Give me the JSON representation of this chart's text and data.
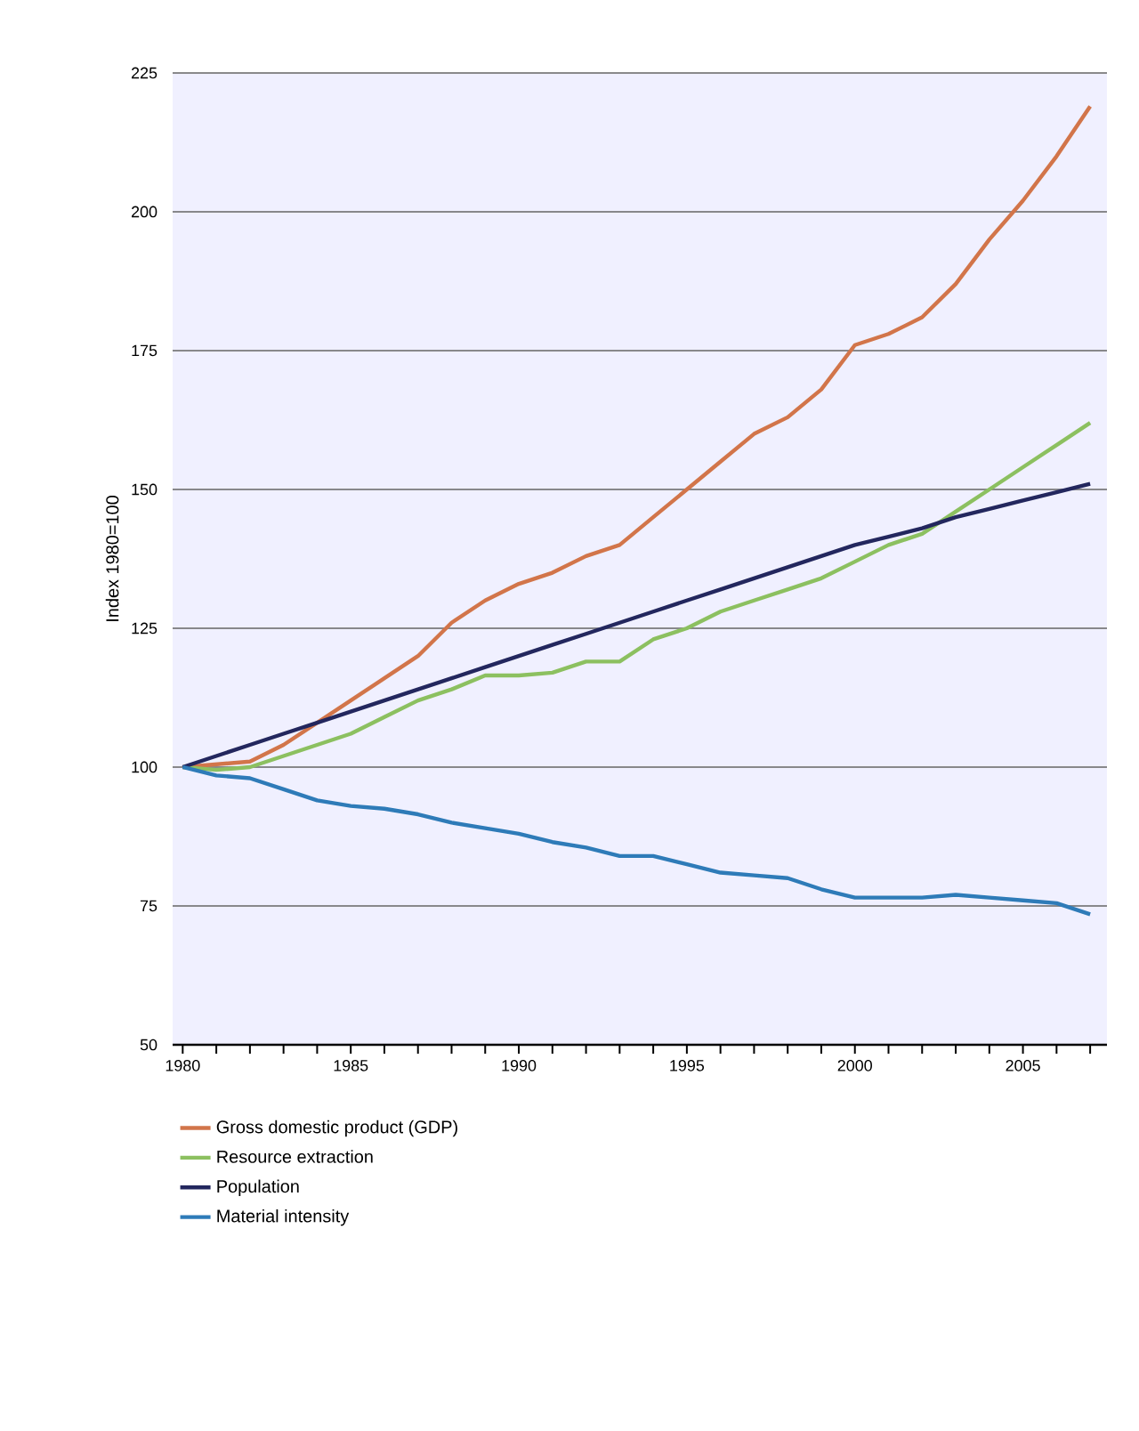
{
  "chart_data": {
    "type": "line",
    "ylabel": "Index 1980=100",
    "x": [
      1980,
      1981,
      1982,
      1983,
      1984,
      1985,
      1986,
      1987,
      1988,
      1989,
      1990,
      1991,
      1992,
      1993,
      1994,
      1995,
      1996,
      1997,
      1998,
      1999,
      2000,
      2001,
      2002,
      2003,
      2004,
      2005,
      2006,
      2007
    ],
    "series": [
      {
        "name": "Gross domestic product (GDP)",
        "color": "#d2754a",
        "values": [
          100,
          100.5,
          101,
          104,
          108,
          112,
          116,
          120,
          126,
          130,
          133,
          135,
          138,
          140,
          145,
          150,
          155,
          160,
          163,
          168,
          176,
          178,
          181,
          187,
          195,
          202,
          210,
          219
        ]
      },
      {
        "name": "Resource extraction",
        "color": "#8cc060",
        "values": [
          100,
          99.5,
          100,
          102,
          104,
          106,
          109,
          112,
          114,
          116.5,
          116.5,
          117,
          119,
          119,
          123,
          125,
          128,
          130,
          132,
          134,
          137,
          140,
          142,
          146,
          150,
          154,
          158,
          162
        ]
      },
      {
        "name": "Population",
        "color": "#23275e",
        "values": [
          100,
          102,
          104,
          106,
          108,
          110,
          112,
          114,
          116,
          118,
          120,
          122,
          124,
          126,
          128,
          130,
          132,
          134,
          136,
          138,
          140,
          141.5,
          143,
          145,
          146.5,
          148,
          149.5,
          151
        ]
      },
      {
        "name": "Material intensity",
        "color": "#2e7bb8",
        "values": [
          100,
          98.5,
          98,
          96,
          94,
          93,
          92.5,
          91.5,
          90,
          89,
          88,
          86.5,
          85.5,
          84,
          84,
          82.5,
          81,
          80.5,
          80,
          78,
          76.5,
          76.5,
          76.5,
          77,
          76.5,
          76,
          75.5,
          73.5
        ]
      }
    ],
    "xlim": [
      1979.7,
      2007.5
    ],
    "xticks": [
      1980,
      {
        "value": 1981,
        "label": null
      },
      {
        "value": 1982,
        "label": null
      },
      {
        "value": 1983,
        "label": null
      },
      {
        "value": 1984,
        "label": null
      },
      1985,
      {
        "value": 1986,
        "label": null
      },
      {
        "value": 1987,
        "label": null
      },
      {
        "value": 1988,
        "label": null
      },
      {
        "value": 1989,
        "label": null
      },
      1990,
      {
        "value": 1991,
        "label": null
      },
      {
        "value": 1992,
        "label": null
      },
      {
        "value": 1993,
        "label": null
      },
      {
        "value": 1994,
        "label": null
      },
      1995,
      {
        "value": 1996,
        "label": null
      },
      {
        "value": 1997,
        "label": null
      },
      {
        "value": 1998,
        "label": null
      },
      {
        "value": 1999,
        "label": null
      },
      2000,
      {
        "value": 2001,
        "label": null
      },
      {
        "value": 2002,
        "label": null
      },
      {
        "value": 2003,
        "label": null
      },
      {
        "value": 2004,
        "label": null
      },
      2005,
      {
        "value": 2006,
        "label": null
      },
      {
        "value": 2007,
        "label": null
      }
    ],
    "ylim": [
      50,
      225
    ],
    "yticks": [
      50,
      75,
      100,
      125,
      150,
      175,
      200,
      225
    ],
    "grid": "y",
    "legend": "bottom",
    "marker": "none",
    "line_style": "solid"
  }
}
